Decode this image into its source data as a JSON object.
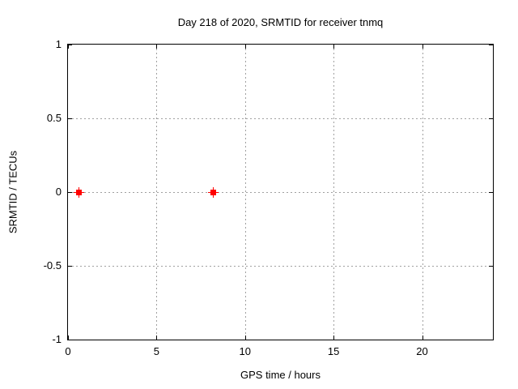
{
  "chart_data": {
    "type": "scatter",
    "title": "Day 218 of 2020, SRMTID for receiver tnmq",
    "xlabel": "GPS time / hours",
    "ylabel": "SRMTID / TECUs",
    "xlim": [
      0,
      24
    ],
    "ylim": [
      -1,
      1
    ],
    "xticks": [
      0,
      5,
      10,
      15,
      20
    ],
    "xtick_labels": [
      "0",
      "5",
      "10",
      "15",
      "20"
    ],
    "yticks": [
      1,
      0.5,
      0,
      -0.5,
      -1
    ],
    "ytick_labels": [
      "1",
      "0.5",
      "0",
      "-0.5",
      "-1"
    ],
    "grid": true,
    "grid_style": "dotted",
    "legend": "none",
    "series": [
      {
        "name": "SRMTID",
        "marker": "filled-square-with-cross",
        "color": "#ff0000",
        "points": [
          {
            "x": 0.6,
            "y": 0.0
          },
          {
            "x": 8.2,
            "y": 0.0
          }
        ]
      }
    ],
    "colors": {
      "background": "#ffffff",
      "axis": "#000000",
      "text": "#000000",
      "grid": "#a0a0a0"
    }
  }
}
